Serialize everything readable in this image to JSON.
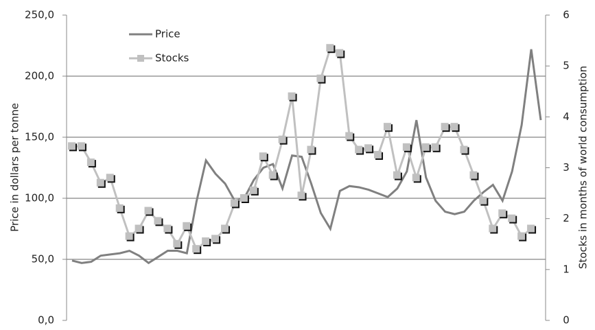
{
  "chart_data": {
    "type": "line",
    "categories": [
      null,
      null,
      null,
      null,
      null,
      null,
      null,
      null,
      null,
      null,
      null,
      null,
      null,
      null,
      null,
      null,
      null,
      null,
      null,
      null,
      null,
      null,
      null,
      null,
      null,
      null,
      null,
      null,
      null,
      null,
      null,
      null,
      null,
      null,
      null,
      null,
      null,
      null,
      null,
      null,
      null,
      null,
      null,
      null,
      null,
      null,
      null,
      null,
      null,
      null
    ],
    "series": [
      {
        "name": "Price",
        "color": "#808080",
        "axis": "y",
        "values": [
          49,
          47,
          48,
          53,
          54,
          55,
          57,
          53,
          47,
          52,
          57,
          57,
          55,
          97,
          131,
          120,
          112,
          98,
          100,
          115,
          125,
          128,
          108,
          135,
          134,
          112,
          88,
          75,
          106,
          110,
          109,
          107,
          104,
          101,
          108,
          122,
          164,
          117,
          98,
          89,
          87,
          89,
          98,
          105,
          111,
          98,
          122,
          160,
          222,
          164
        ]
      },
      {
        "name": "Stocks",
        "color": "#c0c0c0",
        "axis": "y2",
        "marker": true,
        "values": [
          3.42,
          3.42,
          3.1,
          2.7,
          2.8,
          2.2,
          1.65,
          1.8,
          2.15,
          1.95,
          1.8,
          1.5,
          1.85,
          1.4,
          1.55,
          1.6,
          1.8,
          2.3,
          2.4,
          2.55,
          3.22,
          2.85,
          3.55,
          4.4,
          2.45,
          3.35,
          4.75,
          5.35,
          5.25,
          3.62,
          3.35,
          3.38,
          3.25,
          3.8,
          2.85,
          3.4,
          2.8,
          3.4,
          3.4,
          3.8,
          3.8,
          3.35,
          2.85,
          2.35,
          1.8,
          2.1,
          2.0,
          1.65,
          1.8,
          null
        ]
      }
    ],
    "ylabel": "Price in dollars per tonne",
    "y2label": "Stocks in months of world consumption",
    "ylim": [
      0,
      250
    ],
    "yticks": [
      {
        "value": 0,
        "label": "0,0"
      },
      {
        "value": 50,
        "label": "50,0"
      },
      {
        "value": 100,
        "label": "100,0"
      },
      {
        "value": 150,
        "label": "150,0"
      },
      {
        "value": 200,
        "label": "200,0"
      },
      {
        "value": 250,
        "label": "250,0"
      }
    ],
    "y2lim": [
      0,
      6
    ],
    "y2ticks": [
      0,
      1,
      2,
      3,
      4,
      5,
      6
    ],
    "grid": true,
    "legend": "top-left"
  }
}
